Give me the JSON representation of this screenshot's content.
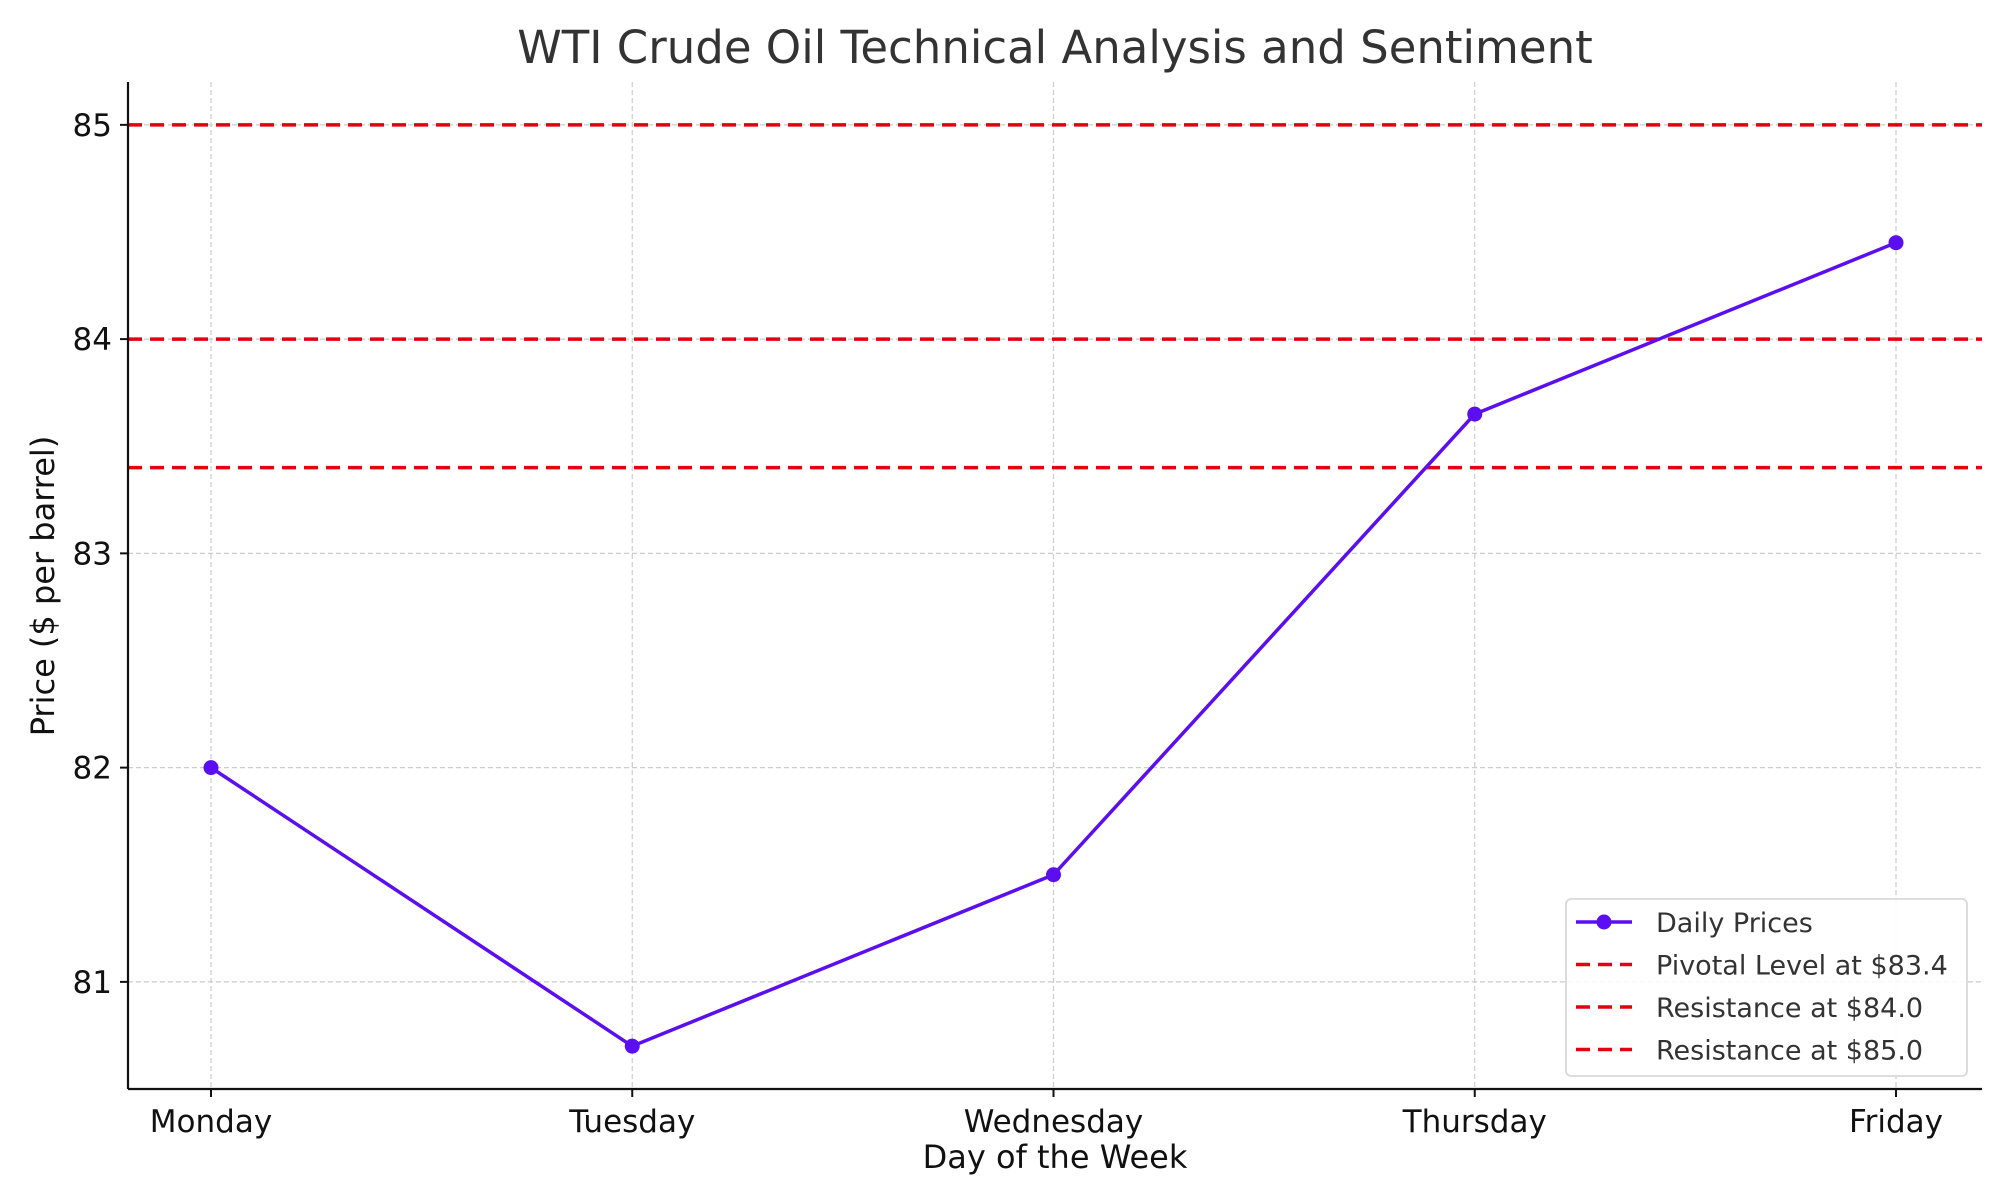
{
  "chart_data": {
    "type": "line",
    "title": "WTI Crude Oil Technical Analysis and Sentiment",
    "xlabel": "Day of the Week",
    "ylabel": "Price ($ per barrel)",
    "categories": [
      "Monday",
      "Tuesday",
      "Wednesday",
      "Thursday",
      "Friday"
    ],
    "series": [
      {
        "name": "Daily Prices",
        "values": [
          82.0,
          80.7,
          81.5,
          83.65,
          84.45
        ],
        "color": "#5b0ff0"
      }
    ],
    "reference_lines": [
      {
        "name": "Pivotal Level at $83.4",
        "value": 83.4,
        "color": "#e3000f",
        "style": "dashed"
      },
      {
        "name": "Resistance at $84.0",
        "value": 84.0,
        "color": "#e3000f",
        "style": "dashed"
      },
      {
        "name": "Resistance at $85.0",
        "value": 85.0,
        "color": "#e3000f",
        "style": "dashed"
      }
    ],
    "ylim": [
      80.5,
      85.2
    ],
    "yticks": [
      81,
      82,
      83,
      84,
      85
    ],
    "grid": true,
    "legend_position": "lower-right"
  }
}
